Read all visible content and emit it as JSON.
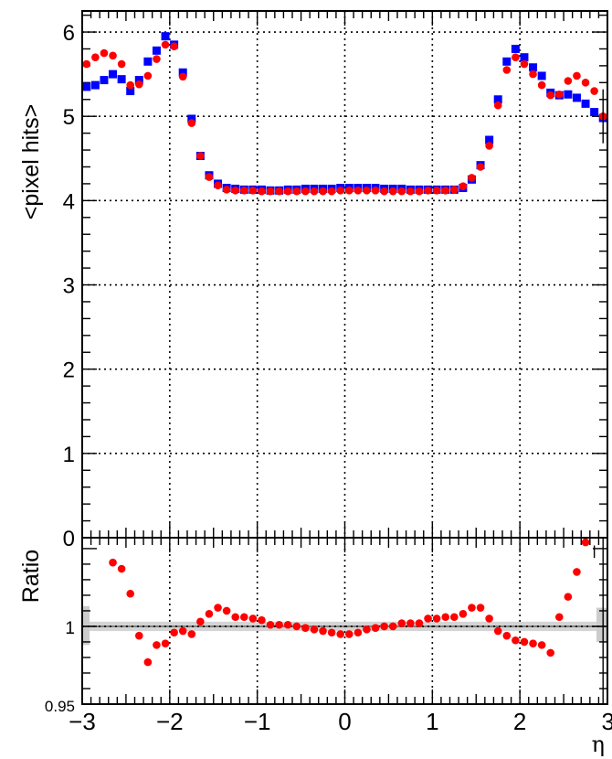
{
  "chart_data": [
    {
      "type": "scatter",
      "panel": "main",
      "ylabel": "<pixel hits>",
      "xlim": [
        -3,
        3
      ],
      "ylim": [
        0,
        6.25
      ],
      "grid": true,
      "x_ticks": [
        -3,
        -2,
        -1,
        0,
        1,
        2,
        3
      ],
      "x_tick_labels": [
        "−3",
        "−2",
        "−1",
        "0",
        "1",
        "2",
        "3"
      ],
      "y_ticks": [
        0,
        1,
        2,
        3,
        4,
        5,
        6
      ],
      "y_tick_labels": [
        "0",
        "1",
        "2",
        "3",
        "4",
        "5",
        "6"
      ],
      "series": [
        {
          "marker": "square",
          "color": "#0000ff",
          "x": [
            -2.95,
            -2.85,
            -2.75,
            -2.65,
            -2.55,
            -2.45,
            -2.35,
            -2.25,
            -2.15,
            -2.05,
            -1.95,
            -1.85,
            -1.75,
            -1.65,
            -1.55,
            -1.45,
            -1.35,
            -1.25,
            -1.15,
            -1.05,
            -0.95,
            -0.85,
            -0.75,
            -0.65,
            -0.55,
            -0.45,
            -0.35,
            -0.25,
            -0.15,
            -0.05,
            0.05,
            0.15,
            0.25,
            0.35,
            0.45,
            0.55,
            0.65,
            0.75,
            0.85,
            0.95,
            1.05,
            1.15,
            1.25,
            1.35,
            1.45,
            1.55,
            1.65,
            1.75,
            1.85,
            1.95,
            2.05,
            2.15,
            2.25,
            2.35,
            2.45,
            2.55,
            2.65,
            2.75,
            2.85,
            2.95
          ],
          "y": [
            5.35,
            5.37,
            5.43,
            5.5,
            5.44,
            5.3,
            5.43,
            5.65,
            5.78,
            5.95,
            5.85,
            5.52,
            4.97,
            4.53,
            4.3,
            4.2,
            4.15,
            4.14,
            4.13,
            4.13,
            4.13,
            4.12,
            4.12,
            4.13,
            4.13,
            4.14,
            4.14,
            4.14,
            4.14,
            4.15,
            4.15,
            4.15,
            4.15,
            4.15,
            4.14,
            4.14,
            4.14,
            4.13,
            4.13,
            4.13,
            4.13,
            4.13,
            4.13,
            4.15,
            4.25,
            4.42,
            4.72,
            5.2,
            5.65,
            5.8,
            5.7,
            5.58,
            5.48,
            5.28,
            5.25,
            5.26,
            5.22,
            5.15,
            5.05,
            4.98
          ]
        },
        {
          "marker": "circle",
          "color": "#ff0000",
          "x": [
            -2.95,
            -2.85,
            -2.75,
            -2.65,
            -2.55,
            -2.45,
            -2.35,
            -2.25,
            -2.15,
            -2.05,
            -1.95,
            -1.85,
            -1.75,
            -1.65,
            -1.55,
            -1.45,
            -1.35,
            -1.25,
            -1.15,
            -1.05,
            -0.95,
            -0.85,
            -0.75,
            -0.65,
            -0.55,
            -0.45,
            -0.35,
            -0.25,
            -0.15,
            -0.05,
            0.05,
            0.15,
            0.25,
            0.35,
            0.45,
            0.55,
            0.65,
            0.75,
            0.85,
            0.95,
            1.05,
            1.15,
            1.25,
            1.35,
            1.45,
            1.55,
            1.65,
            1.75,
            1.85,
            1.95,
            2.05,
            2.15,
            2.25,
            2.35,
            2.45,
            2.55,
            2.65,
            2.75,
            2.85,
            2.95
          ],
          "y": [
            5.62,
            5.7,
            5.75,
            5.72,
            5.62,
            5.37,
            5.38,
            5.48,
            5.68,
            5.85,
            5.83,
            5.47,
            4.92,
            4.53,
            4.28,
            4.18,
            4.13,
            4.12,
            4.12,
            4.12,
            4.11,
            4.11,
            4.11,
            4.11,
            4.11,
            4.11,
            4.11,
            4.11,
            4.11,
            4.12,
            4.12,
            4.12,
            4.12,
            4.12,
            4.11,
            4.11,
            4.11,
            4.11,
            4.11,
            4.12,
            4.12,
            4.12,
            4.13,
            4.17,
            4.27,
            4.4,
            4.65,
            5.13,
            5.55,
            5.7,
            5.62,
            5.5,
            5.37,
            5.25,
            5.26,
            5.42,
            5.48,
            5.4,
            5.3,
            5.0
          ]
        }
      ]
    },
    {
      "type": "scatter",
      "panel": "ratio",
      "ylabel": "Ratio",
      "xlabel": "η",
      "xlim": [
        -3,
        3
      ],
      "ylim": [
        0.95,
        1.057
      ],
      "grid": true,
      "reference_line": 1,
      "x_ticks": [
        -3,
        -2,
        -1,
        0,
        1,
        2,
        3
      ],
      "x_tick_labels": [
        "−3",
        "−2",
        "−1",
        "0",
        "1",
        "2",
        "3"
      ],
      "y_ticks": [
        0.95,
        1
      ],
      "y_tick_labels": [
        "0.95",
        "1"
      ],
      "series": [
        {
          "marker": "circle",
          "color": "#ff0000",
          "x": [
            -2.65,
            -2.55,
            -2.45,
            -2.35,
            -2.25,
            -2.15,
            -2.05,
            -1.95,
            -1.85,
            -1.75,
            -1.65,
            -1.55,
            -1.45,
            -1.35,
            -1.25,
            -1.15,
            -1.05,
            -0.95,
            -0.85,
            -0.75,
            -0.65,
            -0.55,
            -0.45,
            -0.35,
            -0.25,
            -0.15,
            -0.05,
            0.05,
            0.15,
            0.25,
            0.35,
            0.45,
            0.55,
            0.65,
            0.75,
            0.85,
            0.95,
            1.05,
            1.15,
            1.25,
            1.35,
            1.45,
            1.55,
            1.65,
            1.75,
            1.85,
            1.95,
            2.05,
            2.15,
            2.25,
            2.35,
            2.45,
            2.55,
            2.65,
            2.75
          ],
          "y": [
            1.041,
            1.037,
            1.021,
            0.994,
            0.977,
            0.988,
            0.989,
            0.996,
            0.997,
            0.995,
            1.003,
            1.008,
            1.012,
            1.01,
            1.006,
            1.006,
            1.005,
            1.004,
            1.001,
            1.001,
            1.001,
            1.0,
            0.999,
            0.998,
            0.997,
            0.996,
            0.995,
            0.995,
            0.996,
            0.998,
            0.999,
            1.0,
            1.0,
            1.002,
            1.002,
            1.002,
            1.005,
            1.005,
            1.006,
            1.006,
            1.008,
            1.012,
            1.012,
            1.005,
            0.997,
            0.994,
            0.991,
            0.99,
            0.989,
            0.988,
            0.983,
            1.006,
            1.019,
            1.035,
            1.054
          ]
        }
      ]
    }
  ]
}
